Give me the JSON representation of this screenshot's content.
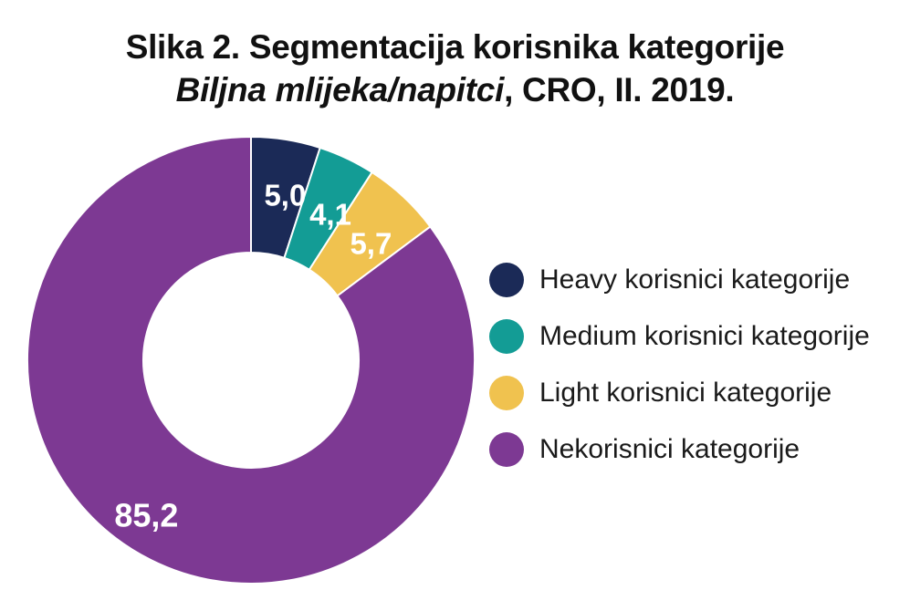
{
  "title": {
    "line1": "Slika 2. Segmentacija korisnika kategorije",
    "line2_italic": "Biljna mlijeka/napitci",
    "line2_rest": ", CRO, II. 2019."
  },
  "chart_data": {
    "type": "pie",
    "variant": "donut",
    "title": "Slika 2. Segmentacija korisnika kategorije Biljna mlijeka/napitci, CRO, II. 2019.",
    "series": [
      {
        "name": "Heavy korisnici kategorije",
        "value": 5.0,
        "label": "5,0",
        "color": "#1b2a57"
      },
      {
        "name": "Medium korisnici kategorije",
        "value": 4.1,
        "label": "4,1",
        "color": "#139c95"
      },
      {
        "name": "Light korisnici kategorije",
        "value": 5.7,
        "label": "5,7",
        "color": "#f0c24f"
      },
      {
        "name": "Nekorisnici kategorije",
        "value": 85.2,
        "label": "85,2",
        "color": "#7d3993"
      }
    ],
    "legend_position": "right"
  }
}
